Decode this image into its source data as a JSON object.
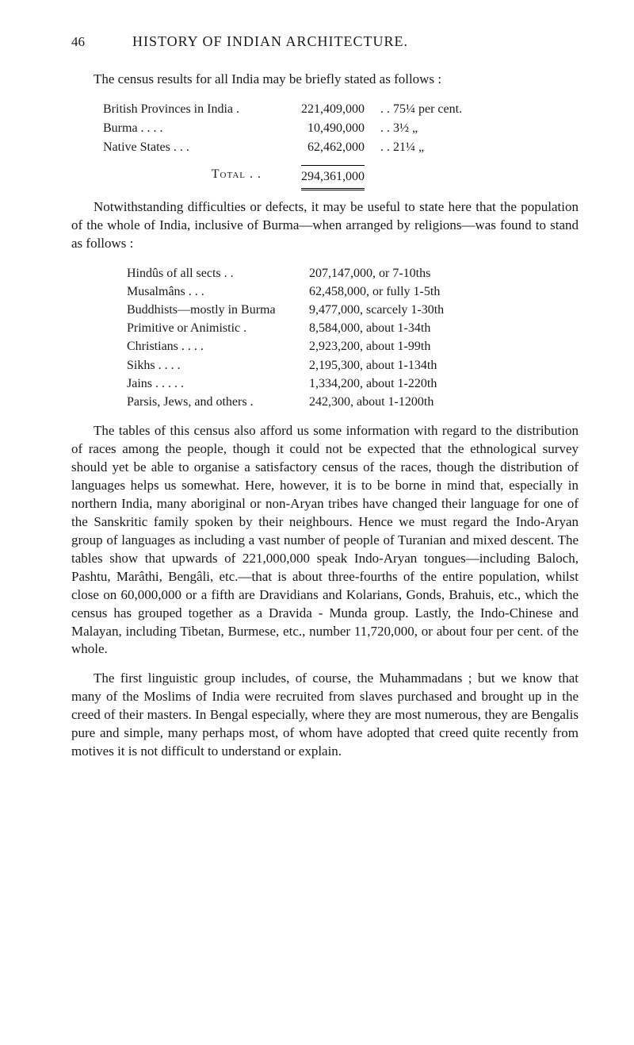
{
  "page": {
    "number": "46",
    "title": "HISTORY OF INDIAN ARCHITECTURE."
  },
  "intro": "The census results for all India may be briefly stated as follows :",
  "table1": {
    "rows": [
      {
        "label": "British Provinces in India .",
        "val": "221,409,000",
        "pct": ".   .  75¼ per cent."
      },
      {
        "label": "Burma       .       .       .       .",
        "val": "10,490,000",
        "pct": ".   .    3½     „"
      },
      {
        "label": "Native States     .       .       .",
        "val": "62,462,000",
        "pct": ".   .  21¼     „"
      }
    ],
    "total_label": "Total  .     .",
    "total_val": "294,361,000"
  },
  "para2": "Notwithstanding difficulties or defects, it may be useful to state here that the population of the whole of India, inclusive of Burma—when arranged by religions—was found to stand as follows :",
  "table2": {
    "rows": [
      {
        "label": "Hindûs of all sects    .      .",
        "val": "207,147,000, or 7-10ths"
      },
      {
        "label": "Musalmâns       .       .       .",
        "val": "62,458,000, or fully 1-5th"
      },
      {
        "label": "Buddhists—mostly in Burma",
        "val": "9,477,000, scarcely 1-30th"
      },
      {
        "label": "Primitive or Animistic     .",
        "val": "8,584,000, about 1-34th"
      },
      {
        "label": "Christians .       .       .       .",
        "val": "2,923,200, about 1-99th"
      },
      {
        "label": "Sikhs        .       .       .       .",
        "val": "2,195,300, about 1-134th"
      },
      {
        "label": "Jains .       .       .       .       .",
        "val": "1,334,200, about 1-220th"
      },
      {
        "label": "Parsis, Jews, and others    .",
        "val": "242,300, about 1-1200th"
      }
    ]
  },
  "para3": "The tables of this census also afford us some information with regard to the distribution of races among the people, though it could not be expected that the ethnological survey should yet be able to organise a satisfactory census of the races, though the distribution of languages helps us somewhat. Here, however, it is to be borne in mind that, especially in northern India, many aboriginal or non-Aryan tribes have changed their language for one of the Sanskritic family spoken by their neighbours. Hence we must regard the Indo-Aryan group of languages as including a vast number of people of Turanian and mixed descent. The tables show that upwards of 221,000,000 speak Indo-Aryan tongues—including Baloch, Pashtu, Marâthi, Bengâli, etc.—that is about three-fourths of the entire population, whilst close on 60,000,000 or a fifth are Dravidians and Kolarians, Gonds, Brahuis, etc., which the census has grouped together as a Dravida - Munda group. Lastly, the Indo-Chinese and Malayan, including Tibetan, Burmese, etc., number 11,720,000, or about four per cent. of the whole.",
  "para4": "The first linguistic group includes, of course, the Muhammadans ; but we know that many of the Moslims of India were recruited from slaves purchased and brought up in the creed of their masters. In Bengal especially, where they are most numerous, they are Bengalis pure and simple, many perhaps most, of whom have adopted that creed quite recently from motives it is not difficult to understand or explain."
}
